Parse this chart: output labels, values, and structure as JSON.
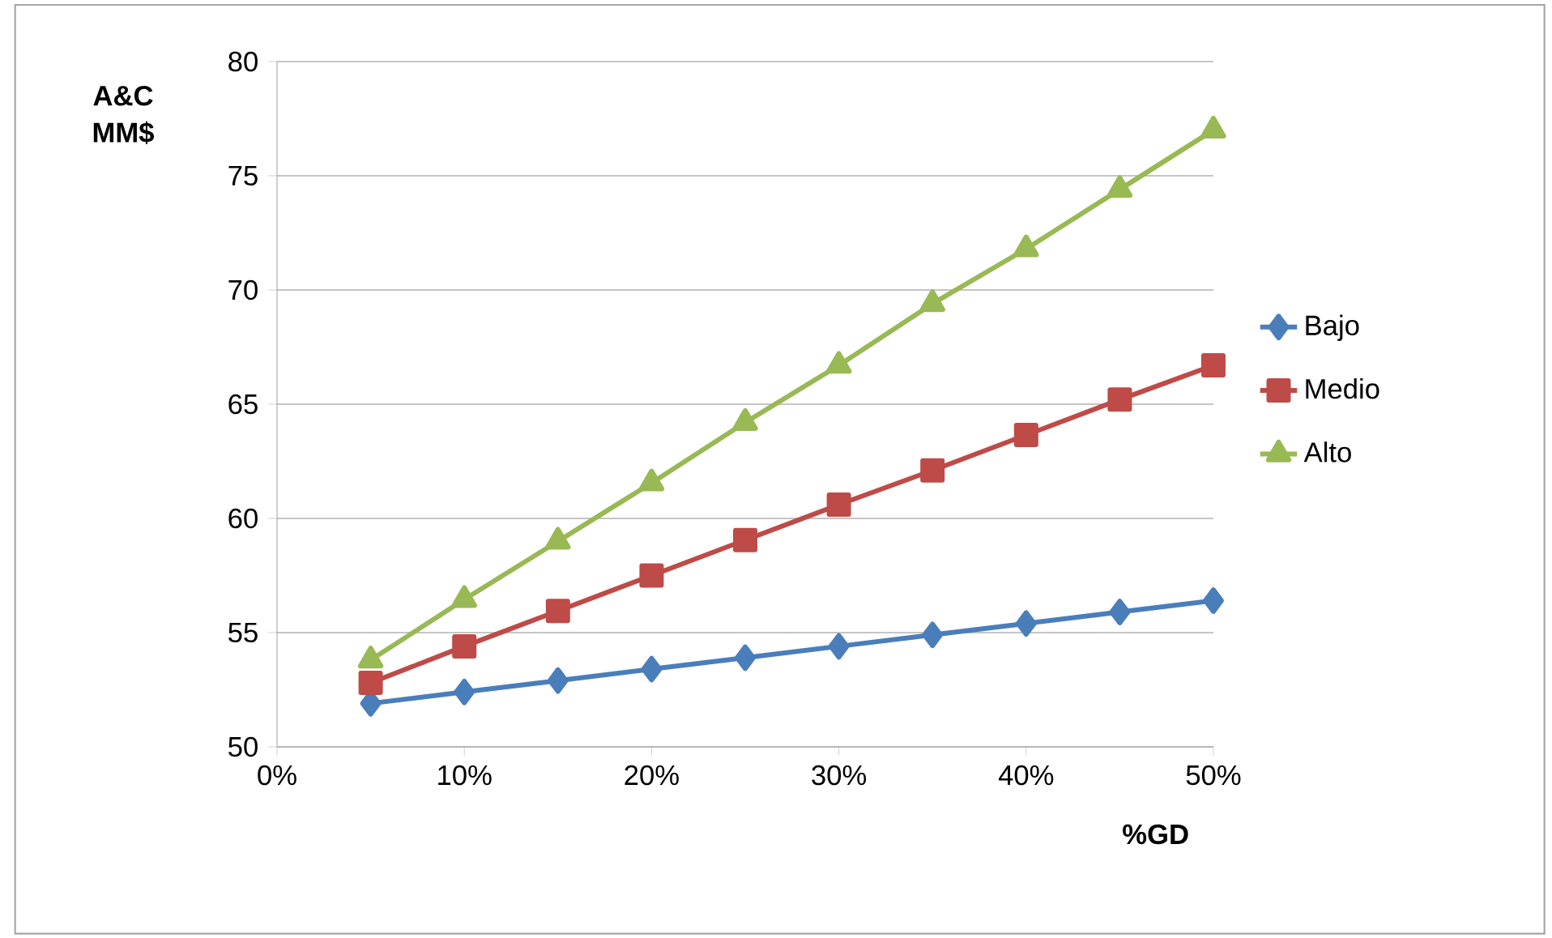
{
  "chart_data": {
    "type": "line",
    "xlabel": "%GD",
    "ylabel": "A&C MM$",
    "x": [
      5,
      10,
      15,
      20,
      25,
      30,
      35,
      40,
      45,
      50
    ],
    "series": [
      {
        "name": "Bajo",
        "color": "#4a7ebb",
        "marker": "diamond",
        "values": [
          51.9,
          52.4,
          52.9,
          53.4,
          53.9,
          54.4,
          54.9,
          55.4,
          55.9,
          56.4
        ]
      },
      {
        "name": "Medio",
        "color": "#be4b48",
        "marker": "square",
        "values": [
          52.8,
          54.4,
          55.95,
          57.5,
          59.05,
          60.6,
          62.1,
          63.65,
          65.2,
          66.7
        ]
      },
      {
        "name": "Alto",
        "color": "#98b954",
        "marker": "triangle",
        "values": [
          53.8,
          56.45,
          59.0,
          61.55,
          64.2,
          66.7,
          69.4,
          71.8,
          74.4,
          77.0
        ]
      }
    ],
    "xlim": [
      0,
      50
    ],
    "xticks": [
      {
        "value": 0,
        "label": "0%"
      },
      {
        "value": 10,
        "label": "10%"
      },
      {
        "value": 20,
        "label": "20%"
      },
      {
        "value": 30,
        "label": "30%"
      },
      {
        "value": 40,
        "label": "40%"
      },
      {
        "value": 50,
        "label": "50%"
      }
    ],
    "ylim": [
      50,
      80
    ],
    "yticks": [
      50,
      55,
      60,
      65,
      70,
      75,
      80
    ],
    "grid": "y",
    "legend": "right",
    "line_style": "solid"
  }
}
